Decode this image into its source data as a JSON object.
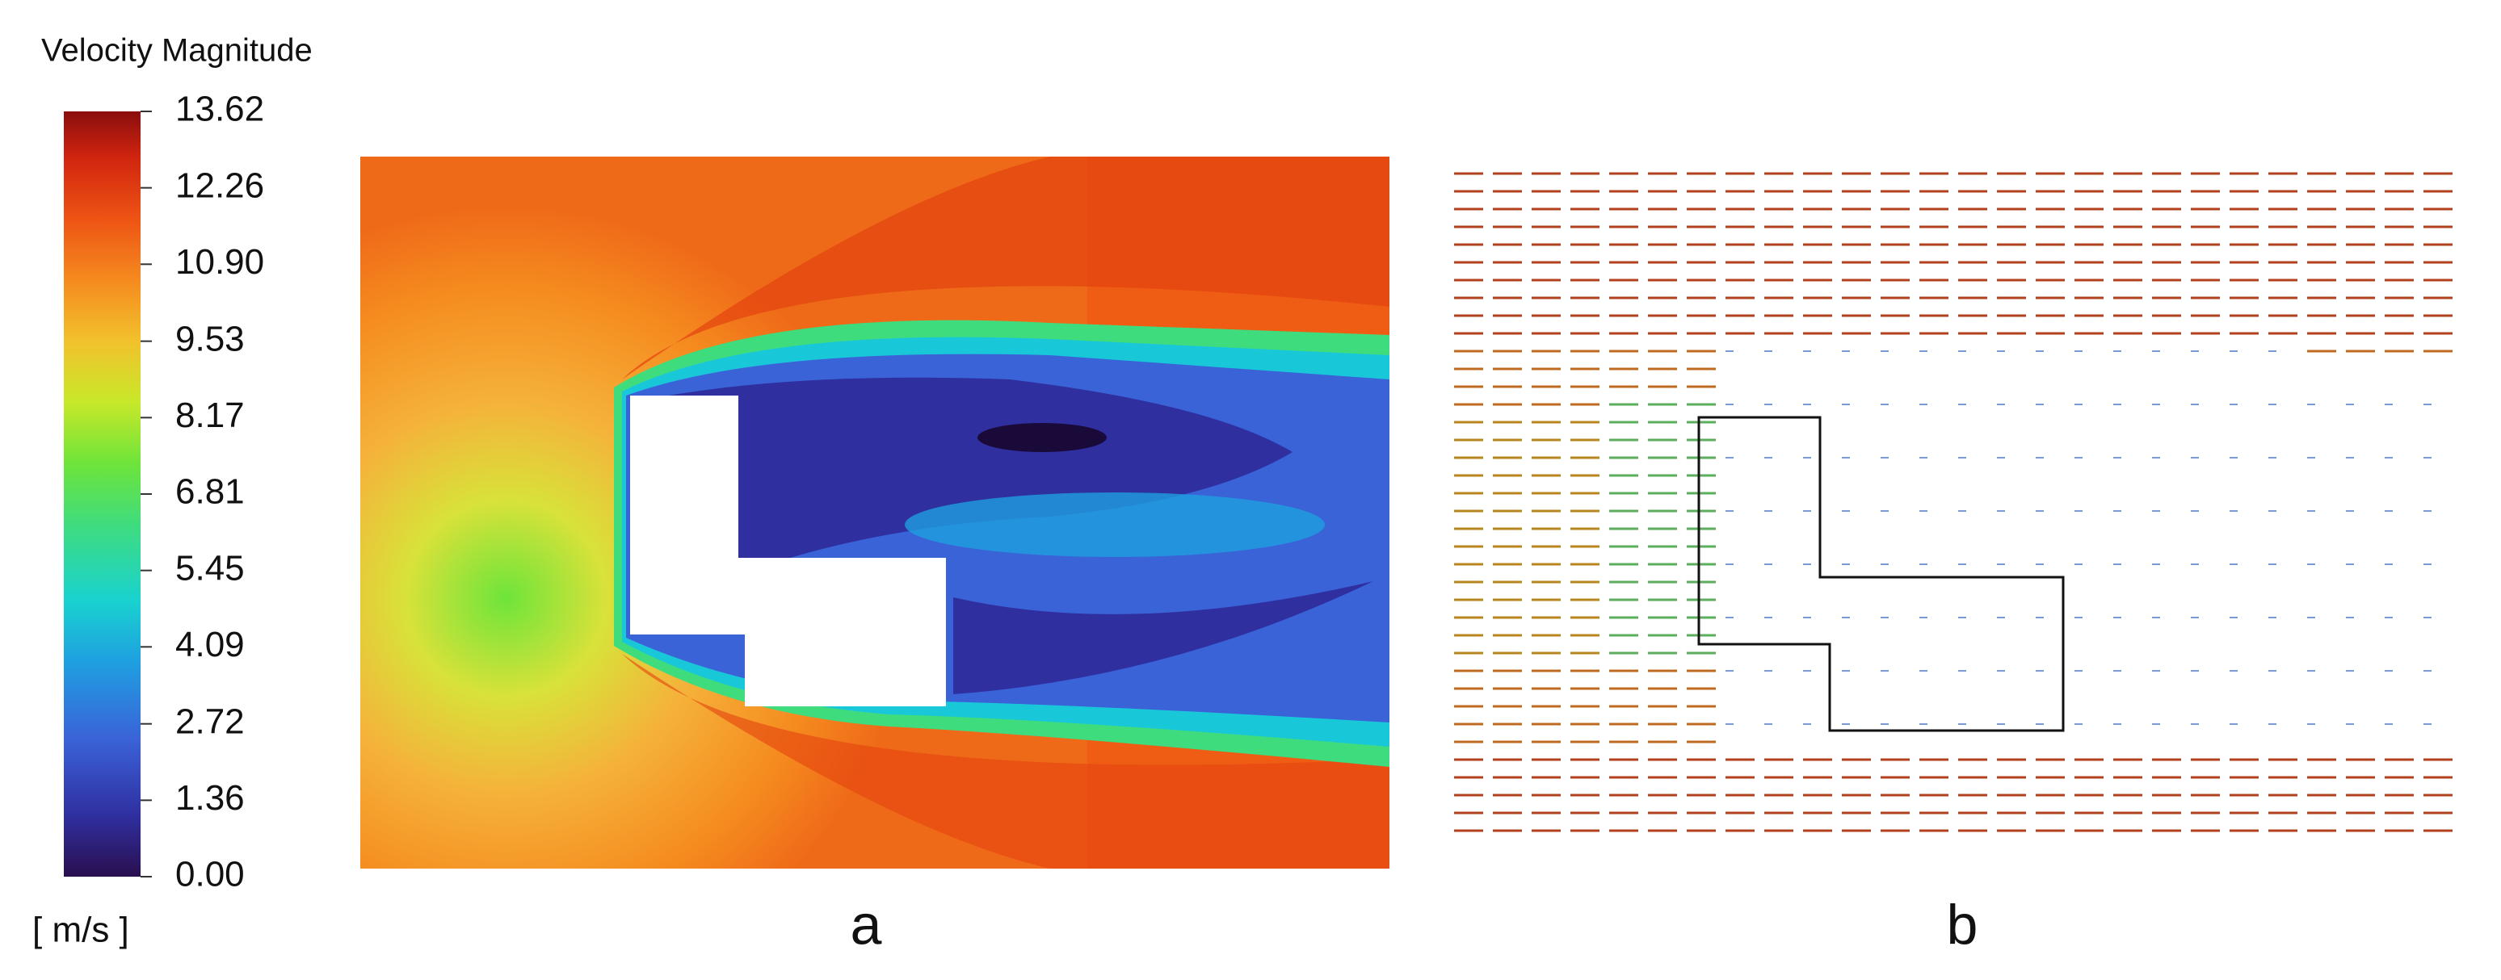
{
  "legend": {
    "title": "Velocity Magnitude",
    "unit": "[ m/s ]",
    "ticks": [
      13.62,
      12.26,
      {
        "value": 10.9,
        "label": "10.90"
      },
      9.53,
      8.17,
      6.81,
      5.45,
      4.09,
      2.72,
      1.36,
      {
        "value": 0,
        "label": "0.00"
      }
    ]
  },
  "panels": [
    {
      "label": "a"
    },
    {
      "label": "b"
    }
  ]
}
